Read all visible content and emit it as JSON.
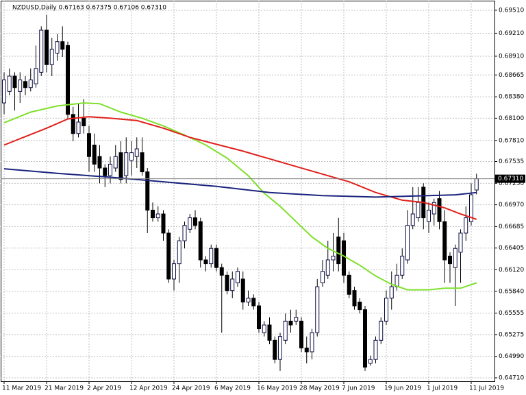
{
  "chart_data": {
    "type": "candlestick",
    "title": "NZDUSD,Daily  0.67163 0.67375 0.67106 0.67310",
    "categories": [
      "11 Mar 2019",
      null,
      null,
      null,
      null,
      null,
      null,
      null,
      "21 Mar 2019",
      null,
      null,
      null,
      null,
      null,
      null,
      null,
      "2 Apr 2019",
      null,
      null,
      null,
      null,
      null,
      null,
      null,
      "12 Apr 2019",
      null,
      null,
      null,
      null,
      null,
      null,
      null,
      "24 Apr 2019",
      null,
      null,
      null,
      null,
      null,
      null,
      null,
      "6 May 2019",
      null,
      null,
      null,
      null,
      null,
      null,
      null,
      "16 May 2019",
      null,
      null,
      null,
      null,
      null,
      null,
      null,
      "28 May 2019",
      null,
      null,
      null,
      null,
      null,
      null,
      null,
      "7 Jun 2019",
      null,
      null,
      null,
      null,
      null,
      null,
      null,
      "19 Jun 2019",
      null,
      null,
      null,
      null,
      null,
      null,
      null,
      "1 Jul 2019",
      null,
      null,
      null,
      null,
      null,
      null,
      null,
      "11 Jul 2019",
      null
    ],
    "open": [
      0.683,
      0.6845,
      0.6865,
      0.6845,
      0.6858,
      0.685,
      0.6855,
      0.687,
      0.6925,
      0.688,
      0.6895,
      0.691,
      0.6905,
      0.6815,
      0.679,
      0.681,
      0.679,
      0.6775,
      0.676,
      0.6745,
      0.6735,
      0.6745,
      0.6765,
      0.6735,
      0.6755,
      0.676,
      0.6765,
      0.674,
      0.669,
      0.668,
      0.6685,
      0.666,
      0.66,
      0.662,
      0.665,
      0.6665,
      0.668,
      0.6675,
      0.6625,
      0.662,
      0.664,
      0.6615,
      0.6605,
      0.6585,
      0.6595,
      0.66,
      0.657,
      0.6575,
      0.6565,
      0.653,
      0.654,
      0.652,
      0.6495,
      0.652,
      0.6545,
      0.6545,
      0.6545,
      0.651,
      0.6505,
      0.653,
      0.6595,
      0.6605,
      0.6625,
      0.6655,
      0.665,
      0.6605,
      0.6585,
      0.657,
      0.656,
      0.649,
      0.6495,
      0.652,
      0.6545,
      0.6575,
      0.659,
      0.6605,
      0.6625,
      0.667,
      0.668,
      0.672,
      0.6675,
      0.6685,
      0.6705,
      0.6675,
      0.663,
      0.6615,
      0.6635,
      0.666,
      0.6675,
      0.67163
    ],
    "high": [
      0.687,
      0.6875,
      0.687,
      0.687,
      0.6865,
      0.6875,
      0.6905,
      0.693,
      0.6945,
      0.6915,
      0.692,
      0.693,
      0.691,
      0.6825,
      0.683,
      0.6835,
      0.68,
      0.679,
      0.6775,
      0.675,
      0.676,
      0.6775,
      0.678,
      0.6785,
      0.678,
      0.6785,
      0.6785,
      0.6745,
      0.67,
      0.6695,
      0.669,
      0.6665,
      0.6625,
      0.6655,
      0.6675,
      0.6685,
      0.669,
      0.668,
      0.663,
      0.6645,
      0.6645,
      0.662,
      0.661,
      0.661,
      0.6615,
      0.661,
      0.6585,
      0.658,
      0.657,
      0.6545,
      0.655,
      0.6525,
      0.653,
      0.6555,
      0.656,
      0.656,
      0.655,
      0.6525,
      0.6535,
      0.66,
      0.6625,
      0.665,
      0.666,
      0.668,
      0.666,
      0.661,
      0.659,
      0.6575,
      0.6565,
      0.65,
      0.6525,
      0.655,
      0.6585,
      0.661,
      0.662,
      0.664,
      0.669,
      0.672,
      0.672,
      0.6725,
      0.67,
      0.6705,
      0.6715,
      0.669,
      0.6635,
      0.6645,
      0.6665,
      0.6695,
      0.6725,
      0.67375
    ],
    "low": [
      0.6815,
      0.684,
      0.682,
      0.683,
      0.684,
      0.6845,
      0.685,
      0.6865,
      0.687,
      0.6865,
      0.6885,
      0.689,
      0.681,
      0.678,
      0.6785,
      0.679,
      0.674,
      0.674,
      0.6725,
      0.672,
      0.6725,
      0.674,
      0.6725,
      0.6725,
      0.6735,
      0.6745,
      0.6735,
      0.666,
      0.6675,
      0.6675,
      0.665,
      0.6595,
      0.6585,
      0.6595,
      0.664,
      0.666,
      0.6665,
      0.6615,
      0.661,
      0.6615,
      0.661,
      0.653,
      0.658,
      0.6575,
      0.659,
      0.656,
      0.6565,
      0.656,
      0.653,
      0.6525,
      0.6515,
      0.649,
      0.648,
      0.6515,
      0.653,
      0.654,
      0.6505,
      0.649,
      0.6495,
      0.6525,
      0.659,
      0.66,
      0.661,
      0.661,
      0.6595,
      0.6575,
      0.656,
      0.6555,
      0.648,
      0.6487,
      0.649,
      0.6515,
      0.654,
      0.656,
      0.6585,
      0.66,
      0.662,
      0.6665,
      0.6675,
      0.6665,
      0.666,
      0.667,
      0.6665,
      0.6595,
      0.6595,
      0.6565,
      0.6595,
      0.665,
      0.667,
      0.67106
    ],
    "close": [
      0.686,
      0.6865,
      0.685,
      0.686,
      0.685,
      0.686,
      0.6875,
      0.6925,
      0.688,
      0.69,
      0.691,
      0.69,
      0.6815,
      0.679,
      0.6805,
      0.68,
      0.676,
      0.675,
      0.6745,
      0.6735,
      0.675,
      0.676,
      0.673,
      0.6765,
      0.6765,
      0.677,
      0.674,
      0.669,
      0.668,
      0.6685,
      0.666,
      0.66,
      0.662,
      0.665,
      0.667,
      0.668,
      0.667,
      0.6625,
      0.662,
      0.664,
      0.6615,
      0.6605,
      0.6585,
      0.66,
      0.661,
      0.657,
      0.6575,
      0.6565,
      0.6535,
      0.654,
      0.652,
      0.6495,
      0.6525,
      0.6545,
      0.654,
      0.655,
      0.651,
      0.6505,
      0.653,
      0.659,
      0.661,
      0.6625,
      0.663,
      0.662,
      0.6605,
      0.658,
      0.6565,
      0.656,
      0.6485,
      0.6495,
      0.652,
      0.6545,
      0.6575,
      0.659,
      0.6605,
      0.663,
      0.667,
      0.6685,
      0.67,
      0.668,
      0.669,
      0.67,
      0.6675,
      0.6625,
      0.662,
      0.664,
      0.666,
      0.668,
      0.671,
      0.6731
    ],
    "up_color": "#ffffff",
    "down_color": "#000000",
    "lines": [
      {
        "color": "#7fe02a",
        "x": [
          0,
          5,
          10,
          15,
          18,
          22,
          26,
          30,
          34,
          38,
          42,
          46,
          49,
          52,
          55,
          58,
          61,
          64,
          67,
          70,
          73,
          76,
          80,
          83,
          86,
          89
        ],
        "values": [
          0.6804,
          0.6818,
          0.6826,
          0.683,
          0.6829,
          0.6818,
          0.681,
          0.68,
          0.6788,
          0.6775,
          0.6758,
          0.6735,
          0.6712,
          0.6695,
          0.6675,
          0.6655,
          0.664,
          0.663,
          0.6618,
          0.6604,
          0.6593,
          0.6586,
          0.6586,
          0.6588,
          0.6588,
          0.6595
        ]
      },
      {
        "color": "#e0201b",
        "x": [
          0,
          4,
          8,
          12,
          16,
          20,
          25,
          30,
          35,
          40,
          45,
          50,
          55,
          60,
          65,
          70,
          75,
          79,
          83,
          86,
          89
        ],
        "values": [
          0.6775,
          0.6786,
          0.6797,
          0.6809,
          0.6812,
          0.681,
          0.6807,
          0.6797,
          0.6785,
          0.6776,
          0.6767,
          0.6757,
          0.6747,
          0.6737,
          0.6727,
          0.6713,
          0.6703,
          0.67,
          0.6693,
          0.6685,
          0.6678
        ]
      },
      {
        "color": "#1a237e",
        "x": [
          0,
          10,
          20,
          30,
          40,
          50,
          60,
          70,
          80,
          85,
          89
        ],
        "values": [
          0.6744,
          0.6738,
          0.6733,
          0.6727,
          0.6721,
          0.6713,
          0.6709,
          0.6707,
          0.6709,
          0.671,
          0.6713
        ]
      }
    ],
    "last_price": {
      "value": 0.6731,
      "label": "0.67310"
    },
    "ylim": [
      0.64665,
      0.69608
    ],
    "yticks": [
      {
        "value": 0.6951,
        "label": "0.69510"
      },
      {
        "value": 0.6921,
        "label": "0.69210"
      },
      {
        "value": 0.6891,
        "label": "0.68910"
      },
      {
        "value": 0.68665,
        "label": "0.68665"
      },
      {
        "value": 0.6838,
        "label": "0.68380"
      },
      {
        "value": 0.681,
        "label": "0.68100"
      },
      {
        "value": 0.6781,
        "label": "0.67810"
      },
      {
        "value": 0.67535,
        "label": "0.67535"
      },
      {
        "value": 0.6725,
        "label": "0.67250"
      },
      {
        "value": 0.6697,
        "label": "0.66970"
      },
      {
        "value": 0.66685,
        "label": "0.66685"
      },
      {
        "value": 0.66405,
        "label": "0.66405"
      },
      {
        "value": 0.6612,
        "label": "0.66120"
      },
      {
        "value": 0.6584,
        "label": "0.65840"
      },
      {
        "value": 0.65555,
        "label": "0.65555"
      },
      {
        "value": 0.65275,
        "label": "0.65275"
      },
      {
        "value": 0.6499,
        "label": "0.64990"
      },
      {
        "value": 0.6471,
        "label": "0.64710"
      }
    ],
    "grid": true
  }
}
